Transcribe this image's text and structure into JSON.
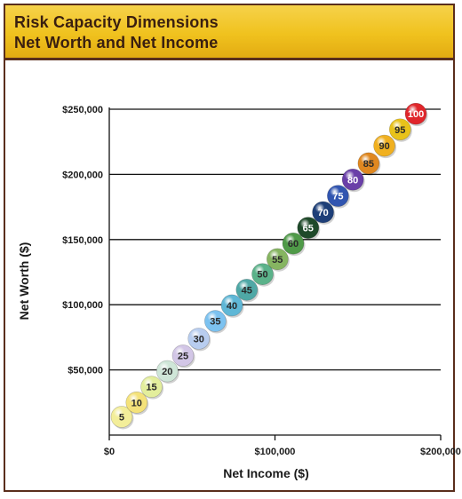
{
  "header": {
    "title_line1": "Risk Capacity Dimensions",
    "title_line2": "Net Worth and Net Income"
  },
  "chart_data": {
    "type": "scatter",
    "title": "Risk Capacity Dimensions Net Worth and Net Income",
    "xlabel": "Net Income ($)",
    "ylabel": "Net Worth ($)",
    "xlim": [
      0,
      200000
    ],
    "ylim": [
      0,
      250000
    ],
    "x_ticks": [
      {
        "value": 0,
        "label": "$0"
      },
      {
        "value": 100000,
        "label": "$100,000"
      },
      {
        "value": 200000,
        "label": "$200,000"
      }
    ],
    "y_ticks": [
      {
        "value": 50000,
        "label": "$50,000"
      },
      {
        "value": 100000,
        "label": "$100,000"
      },
      {
        "value": 150000,
        "label": "$150,000"
      },
      {
        "value": 200000,
        "label": "$200,000"
      },
      {
        "value": 250000,
        "label": "$250,000"
      }
    ],
    "grid": "horizontal",
    "points": [
      {
        "label": "5",
        "x": 7500,
        "y": 14000,
        "color": "#f3ee9a"
      },
      {
        "label": "10",
        "x": 16500,
        "y": 25000,
        "color": "#f4e27a"
      },
      {
        "label": "15",
        "x": 25500,
        "y": 37000,
        "color": "#e3ee9c"
      },
      {
        "label": "20",
        "x": 35000,
        "y": 49000,
        "color": "#cfe6d8"
      },
      {
        "label": "25",
        "x": 44500,
        "y": 61000,
        "color": "#d2c6e6"
      },
      {
        "label": "30",
        "x": 54000,
        "y": 74000,
        "color": "#b8cdef"
      },
      {
        "label": "35",
        "x": 64000,
        "y": 87500,
        "color": "#7cc2f0"
      },
      {
        "label": "40",
        "x": 74000,
        "y": 99500,
        "color": "#5fb7d6"
      },
      {
        "label": "45",
        "x": 83000,
        "y": 111500,
        "color": "#4fa8a6"
      },
      {
        "label": "50",
        "x": 92500,
        "y": 123500,
        "color": "#5bb28a"
      },
      {
        "label": "55",
        "x": 101500,
        "y": 135000,
        "color": "#86b561"
      },
      {
        "label": "60",
        "x": 111000,
        "y": 147000,
        "color": "#4f9a48"
      },
      {
        "label": "65",
        "x": 120000,
        "y": 159000,
        "color": "#1f4a2a"
      },
      {
        "label": "70",
        "x": 129000,
        "y": 171000,
        "color": "#1e3f78"
      },
      {
        "label": "75",
        "x": 138000,
        "y": 183500,
        "color": "#3155b0"
      },
      {
        "label": "80",
        "x": 147000,
        "y": 196000,
        "color": "#6a3fa8"
      },
      {
        "label": "85",
        "x": 156500,
        "y": 208500,
        "color": "#e08820"
      },
      {
        "label": "90",
        "x": 166000,
        "y": 222000,
        "color": "#f0b020"
      },
      {
        "label": "95",
        "x": 175500,
        "y": 234500,
        "color": "#e8c21a"
      },
      {
        "label": "100",
        "x": 185000,
        "y": 246500,
        "color": "#e0262b"
      }
    ]
  }
}
